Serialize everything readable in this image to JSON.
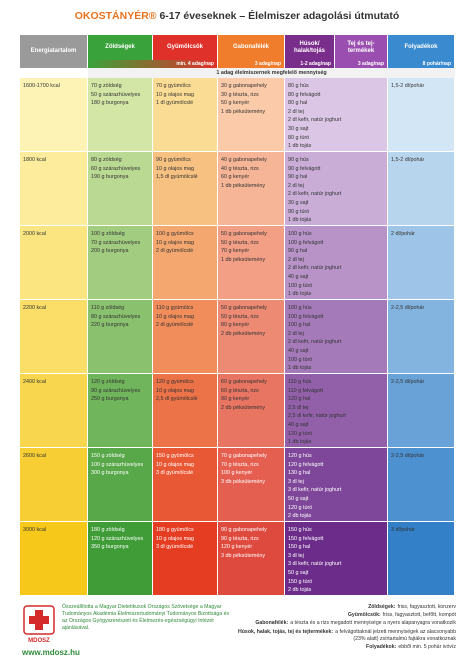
{
  "title": {
    "brand": "OKOSTÁNYÉR®",
    "text": "6-17 éveseknek – Élelmiszer adagolási útmutató"
  },
  "table": {
    "headers": [
      "Energiatartalom",
      "Zöldségek",
      "Gyümölcsök",
      "Gabonafélék",
      "Húsok/ halak/tojás",
      "Tej és tej-termékek",
      "Folyadékok"
    ],
    "portions": [
      "min. 4 adag/nap",
      "3 adag/nap",
      "1-2 adag/nap",
      "3 adag/nap",
      "8 pohár/nap"
    ],
    "portion_note": "1 adag élelmiszernek megfelelő mennyiség",
    "rows": [
      {
        "energy": "1600-1700 kcal",
        "vegetables": [
          "70 g zöldség",
          "50 g szárazhüvelyes",
          "180 g burgonya"
        ],
        "fruits": [
          "70 g gyümölcs",
          "10 g olajos mag",
          "1 dl gyümölcslé"
        ],
        "grains": [
          "30 g gabonapehely",
          "30 g tészta, rizs",
          "50 g kenyér",
          "1 db péksütemény"
        ],
        "protein_dairy": [
          "80 g hús",
          "80 g felvágott",
          "80 g hal",
          "2 dl tej",
          "2 dl kefir, natúr joghurt",
          "30 g sajt",
          "80 g túró",
          "1 db tojás"
        ],
        "fluids": "1,5-2 dl/pohár"
      },
      {
        "energy": "1800 kcal",
        "vegetables": [
          "80 g zöldség",
          "60 g szárazhüvelyes",
          "190 g burgonya"
        ],
        "fruits": [
          "90 g gyümölcs",
          "10 g olajos mag",
          "1,5 dl gyümölcslé"
        ],
        "grains": [
          "40 g gabonapehely",
          "40 g tészta, rizs",
          "60 g kenyér",
          "1 db péksütemény"
        ],
        "protein_dairy": [
          "90 g hús",
          "90 g felvágott",
          "90 g hal",
          "2 dl tej",
          "2 dl kefir, natúr joghurt",
          "30 g sajt",
          "90 g túró",
          "1 db tojás"
        ],
        "fluids": "1,5-2 dl/pohár"
      },
      {
        "energy": "2000 kcal",
        "vegetables": [
          "100 g zöldség",
          "70 g szárazhüvelyes",
          "200 g burgonya"
        ],
        "fruits": [
          "100 g gyümölcs",
          "10 g olajos mag",
          "2 dl gyümölcslé"
        ],
        "grains": [
          "50 g gabonapehely",
          "50 g tészta, rizs",
          "70 g kenyér",
          "1 db péksütemény"
        ],
        "protein_dairy": [
          "100 g hús",
          "100 g felvágott",
          "90 g hal",
          "2 dl tej",
          "2 dl kefir, natúr joghurt",
          "40 g sajt",
          "100 g túró",
          "1 db tojás"
        ],
        "fluids": "2 dl/pohár"
      },
      {
        "energy": "2200 kcal",
        "vegetables": [
          "110 g zöldség",
          "80 g szárazhüvelyes",
          "220 g burgonya"
        ],
        "fruits": [
          "110 g gyümölcs",
          "10 g olajos mag",
          "2 dl gyümölcslé"
        ],
        "grains": [
          "50 g gabonapehely",
          "50 g tészta, rizs",
          "80 g kenyér",
          "2 db péksütemény"
        ],
        "protein_dairy": [
          "100 g hús",
          "100 g felvágott",
          "100 g hal",
          "2 dl tej",
          "2 dl kefir, natúr joghurt",
          "40 g sajt",
          "100 g túró",
          "1 db tojás"
        ],
        "fluids": "2-2,5 dl/pohár"
      },
      {
        "energy": "2400 kcal",
        "vegetables": [
          "120 g zöldség",
          "90 g szárazhüvelyes",
          "250 g burgonya"
        ],
        "fruits": [
          "120 g gyümölcs",
          "10 g olajos mag",
          "2,5 dl gyümölcslé"
        ],
        "grains": [
          "60 g gabonapehely",
          "60 g tészta, rizs",
          "90 g kenyér",
          "2 db péksütemény"
        ],
        "protein_dairy": [
          "110 g hús",
          "110 g felvágott",
          "120 g hal",
          "2,5 dl tej",
          "2,5 dl kefir, natúr joghurt",
          "40 g sajt",
          "120 g túró",
          "1 db tojás"
        ],
        "fluids": "2-2,5 dl/pohár"
      },
      {
        "energy": "2600 kcal",
        "vegetables": [
          "150 g zöldség",
          "100 g szárazhüvelyes",
          "300 g burgonya"
        ],
        "fruits": [
          "150 g gyümölcs",
          "10 g olajos mag",
          "3 dl gyümölcslé"
        ],
        "grains": [
          "70 g gabonapehely",
          "70 g tészta, rizs",
          "100 g kenyér",
          "3 db péksütemény"
        ],
        "protein_dairy": [
          "120 g hús",
          "120 g felvágott",
          "130 g hal",
          "3 dl tej",
          "3 dl kefir, natúr joghurt",
          "50 g sajt",
          "120 g túró",
          "2 db tojás"
        ],
        "fluids": "2-2,5 dl/pohár"
      },
      {
        "energy": "3000 kcal",
        "vegetables": [
          "180 g zöldség",
          "120 g szárazhüvelyes",
          "350 g burgonya"
        ],
        "fruits": [
          "180 g gyümölcs",
          "10 g olajos mag",
          "3 dl gyümölcslé"
        ],
        "grains": [
          "90 g gabonapehely",
          "90 g tészta, rizs",
          "120 g kenyér",
          "3 db péksütemény"
        ],
        "protein_dairy": [
          "150 g hús",
          "150 g felvágott",
          "150 g hal",
          "3 dl tej",
          "3 dl kefir, natúr joghurt",
          "50 g sajt",
          "150 g túró",
          "2 db tojás"
        ],
        "fluids": "3 dl/pohár"
      }
    ]
  },
  "footer": {
    "logo": "MDOSZ",
    "credit": "Összeállította a Magyar Dietetikusok Országos Szövetsége a Magyar Tudományos Akadémia Élelmiszertudományi Tudományos Bizottsága és az Országos Gyógyszerészeti és Élelmezés-egészségügyi Intézet ajánlásával.",
    "url": "www.mdosz.hu",
    "notes": [
      {
        "term": "Zöldségek:",
        "text": "friss, fagyasztott, konzerv"
      },
      {
        "term": "Gyümölcsök:",
        "text": "friss, fagyasztott, befőtt, kompót"
      },
      {
        "term": "Gabonafélék:",
        "text": "a tészta és a rizs megadott mennyisége a nyers alapanyagra vonatkozik"
      },
      {
        "term": "Húsok, halak, tojás, tej és tejtermékek:",
        "text": "a felvágottaknál jelzett mennyiségek az alacsonyabb (23% alatt) zsírtartalmú fajtákra vonatkoznak"
      },
      {
        "term": "Folyadékok:",
        "text": "ebből min. 5 pohár ivóvíz"
      }
    ]
  }
}
